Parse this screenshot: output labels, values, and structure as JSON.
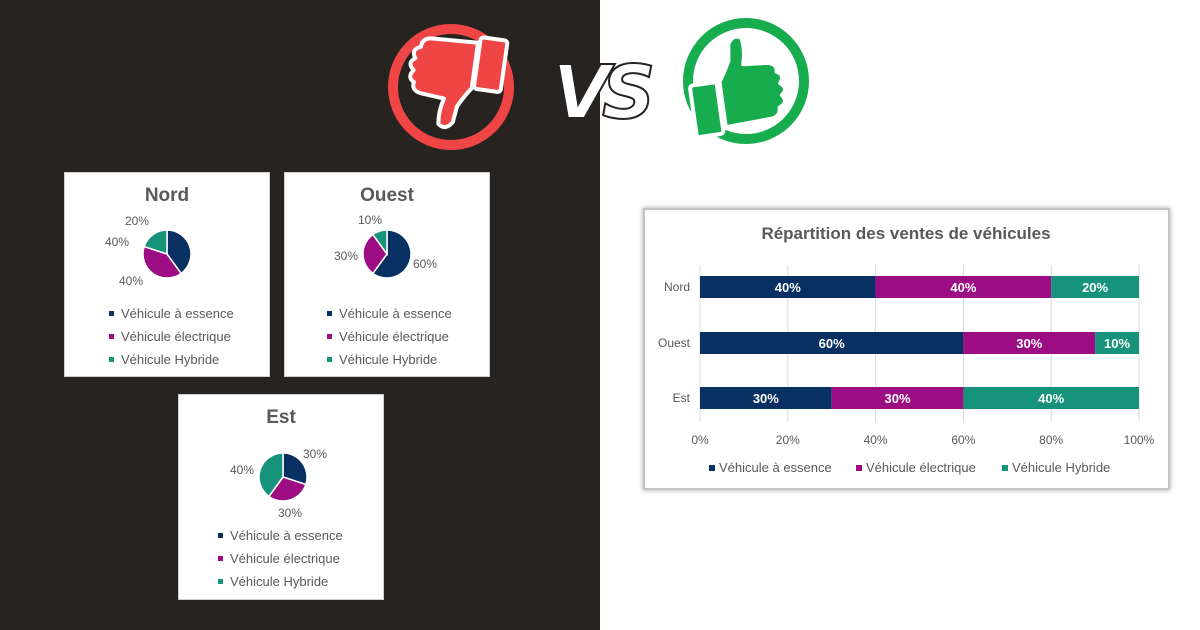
{
  "colors": {
    "essence": "#083063",
    "electrique": "#9c0d84",
    "hybride": "#17937c",
    "red": "#f04545",
    "green": "#17ad4e"
  },
  "vs_text": "VS",
  "chart_data": [
    {
      "type": "pie",
      "title": "Nord",
      "labels": [
        "Véhicule à essence",
        "Véhicule électrique",
        "Véhicule Hybride"
      ],
      "values": [
        40,
        40,
        20
      ],
      "data_labels": [
        "40%",
        "40%",
        "20%"
      ]
    },
    {
      "type": "pie",
      "title": "Ouest",
      "labels": [
        "Véhicule à essence",
        "Véhicule électrique",
        "Véhicule Hybride"
      ],
      "values": [
        60,
        30,
        10
      ],
      "data_labels": [
        "60%",
        "30%",
        "10%"
      ]
    },
    {
      "type": "pie",
      "title": "Est",
      "labels": [
        "Véhicule à essence",
        "Véhicule électrique",
        "Véhicule Hybride"
      ],
      "values": [
        30,
        30,
        40
      ],
      "data_labels": [
        "30%",
        "30%",
        "40%"
      ]
    },
    {
      "type": "bar",
      "stacked": true,
      "orientation": "horizontal",
      "title": "Répartition des ventes de véhicules",
      "categories": [
        "Nord",
        "Ouest",
        "Est"
      ],
      "series": [
        {
          "name": "Véhicule à essence",
          "values": [
            40,
            60,
            30
          ],
          "labels": [
            "40%",
            "60%",
            "30%"
          ]
        },
        {
          "name": "Véhicule électrique",
          "values": [
            40,
            30,
            30
          ],
          "labels": [
            "40%",
            "30%",
            "30%"
          ]
        },
        {
          "name": "Véhicule Hybride",
          "values": [
            20,
            10,
            40
          ],
          "labels": [
            "20%",
            "10%",
            "40%"
          ]
        }
      ],
      "xlim": [
        0,
        100
      ],
      "xticks": [
        "0%",
        "20%",
        "40%",
        "60%",
        "80%",
        "100%"
      ],
      "grid": true,
      "legend": "bottom"
    }
  ]
}
